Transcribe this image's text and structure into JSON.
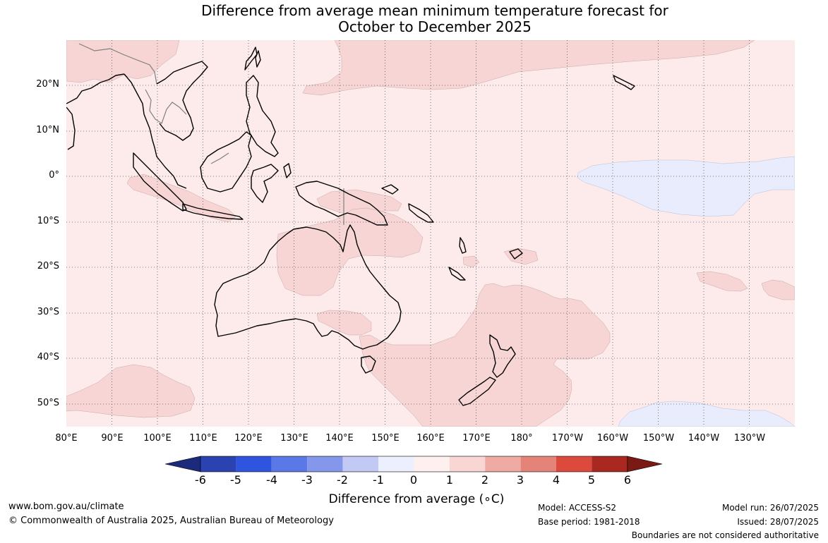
{
  "title": {
    "line1": "Difference from average mean minimum temperature forecast for",
    "line2": "October to December 2025"
  },
  "map": {
    "extent": {
      "lon_min": 80,
      "lon_max": 240,
      "lat_min": -55,
      "lat_max": 30
    },
    "background_color": "#fcebea",
    "colors": {
      "anomaly_0_to_1": "#fcebea",
      "anomaly_1_to_2": "#f6d5d4",
      "anomaly_minus1_to_0": "#e8ecfd",
      "coastline": "#000000",
      "border": "#808080",
      "gridline": "#555555"
    },
    "lat_labels": [
      "20°N",
      "10°N",
      "0°",
      "10°S",
      "20°S",
      "30°S",
      "40°S",
      "50°S"
    ],
    "lon_labels": [
      "80°E",
      "90°E",
      "100°E",
      "110°E",
      "120°E",
      "130°E",
      "140°E",
      "150°E",
      "160°E",
      "170°E",
      "180°",
      "170°W",
      "160°W",
      "150°W",
      "140°W",
      "130°W"
    ]
  },
  "colorbar": {
    "ticks": [
      "-6",
      "-5",
      "-4",
      "-3",
      "-2",
      "-1",
      "0",
      "1",
      "2",
      "3",
      "4",
      "5",
      "6"
    ],
    "colors": [
      "#1b2a7a",
      "#2a43b0",
      "#2f55e0",
      "#5b79e6",
      "#8597ea",
      "#c2c9f4",
      "#eceffd",
      "#fdf0ee",
      "#f7d6d4",
      "#eeaaa3",
      "#e48478",
      "#dc4a3d",
      "#a92921",
      "#7b1a14"
    ],
    "label": "Difference from average (∘C)"
  },
  "footer": {
    "url": "www.bom.gov.au/climate",
    "copyright": "© Commonwealth of Australia 2025, Australian Bureau of Meteorology",
    "model": "Model: ACCESS-S2",
    "base_period": "Base period: 1981-2018",
    "model_run": "Model run: 26/07/2025",
    "issued": "Issued: 28/07/2025",
    "disclaimer": "Boundaries are not considered authoritative"
  }
}
